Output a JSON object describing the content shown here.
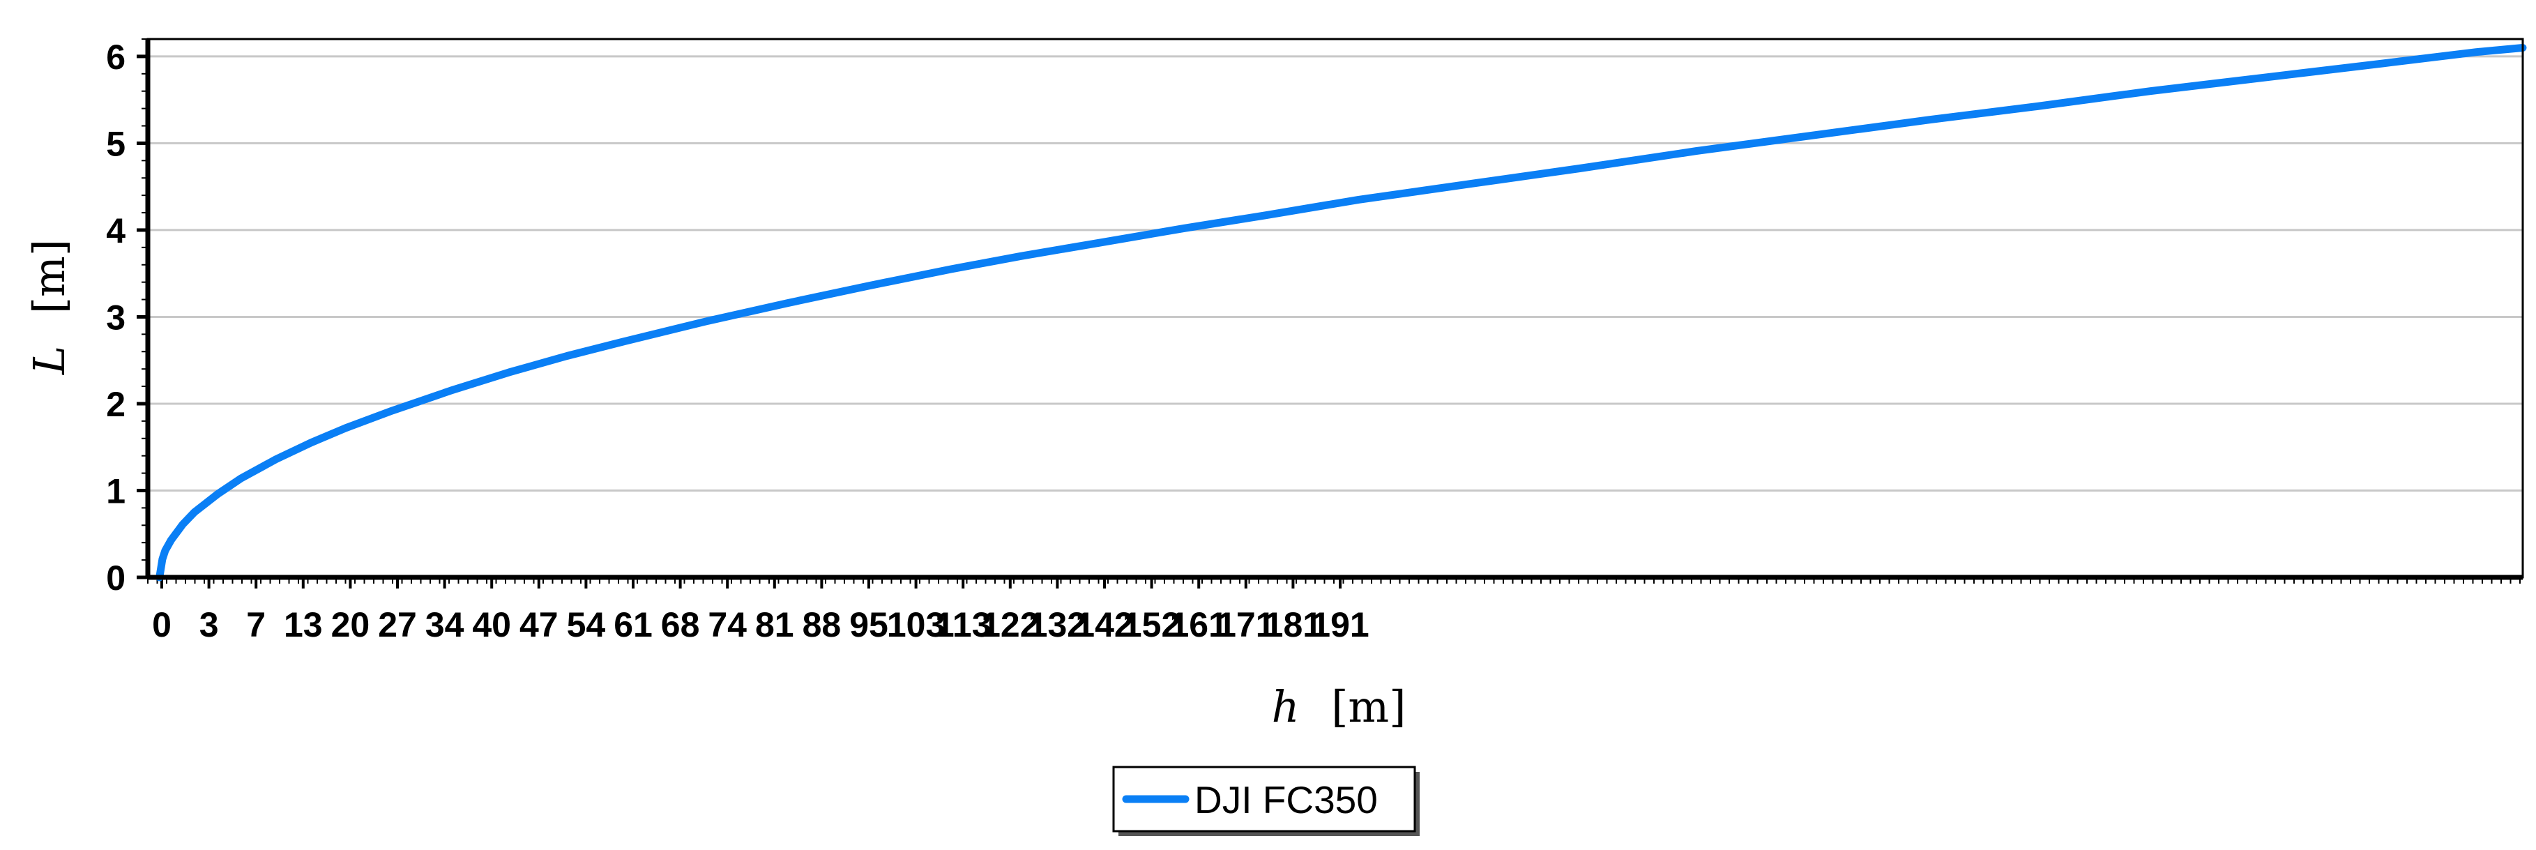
{
  "chart_data": {
    "type": "line",
    "title": "",
    "xlabel_var": "h",
    "xlabel_unit": "[m]",
    "ylabel_var": "L",
    "ylabel_unit": "[m]",
    "xlim": [
      -1,
      203
    ],
    "ylim": [
      0,
      6.2
    ],
    "grid": true,
    "legend_position": "bottom-center",
    "x_tick_labels": [
      "0",
      "3",
      "7",
      "13",
      "20",
      "27",
      "34",
      "40",
      "47",
      "54",
      "61",
      "68",
      "74",
      "81",
      "88",
      "95",
      "103",
      "113",
      "122",
      "132",
      "142",
      "152",
      "161",
      "171",
      "181",
      "191"
    ],
    "y_ticks": [
      0,
      1,
      2,
      3,
      4,
      5,
      6
    ],
    "y_tick_labels": [
      "0",
      "1",
      "2",
      "3",
      "4",
      "5",
      "6"
    ],
    "series": [
      {
        "name": "DJI FC350",
        "color": "#0a7ff5",
        "x": [
          0,
          0.25,
          0.5,
          1,
          2,
          3,
          5,
          7,
          10,
          13,
          16,
          20,
          25,
          30,
          35,
          40,
          47,
          54,
          61,
          68,
          74,
          81,
          88,
          95,
          103,
          113,
          122,
          132,
          142,
          152,
          161,
          171,
          181,
          191,
          199,
          203
        ],
        "y": [
          0,
          0.21,
          0.31,
          0.43,
          0.61,
          0.75,
          0.96,
          1.14,
          1.36,
          1.55,
          1.72,
          1.92,
          2.15,
          2.36,
          2.55,
          2.72,
          2.95,
          3.16,
          3.36,
          3.55,
          3.7,
          3.86,
          4.02,
          4.17,
          4.35,
          4.54,
          4.71,
          4.91,
          5.09,
          5.27,
          5.42,
          5.6,
          5.76,
          5.92,
          6.05,
          6.1
        ]
      }
    ]
  }
}
